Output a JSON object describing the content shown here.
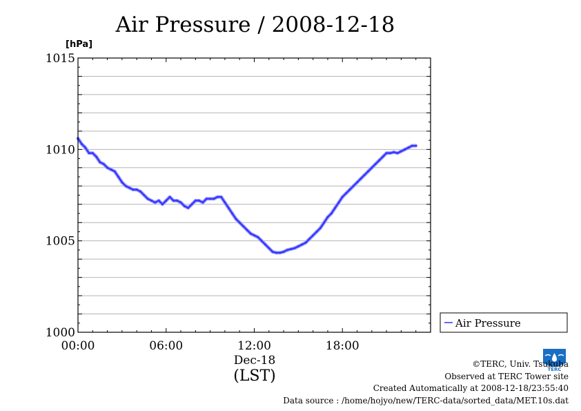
{
  "chart_data": {
    "type": "line",
    "title": "Air Pressure / 2008-12-18",
    "ylabel": "[hPa]",
    "xlabel": "Dec-18",
    "xlabel_sub": "(LST)",
    "ylim": [
      1000,
      1015
    ],
    "xlim_hours": [
      0,
      24
    ],
    "y_ticks": [
      "1000",
      "1005",
      "1010",
      "1015"
    ],
    "x_ticks": [
      {
        "hour": 0,
        "label": "00:00"
      },
      {
        "hour": 6,
        "label": "06:00"
      },
      {
        "hour": 12,
        "label": "12:00"
      },
      {
        "hour": 18,
        "label": "18:00"
      }
    ],
    "grid": true,
    "legend_position": "right",
    "series": [
      {
        "name": "Air Pressure",
        "color": "#3333ff",
        "points": [
          [
            0.0,
            1010.6
          ],
          [
            0.25,
            1010.3
          ],
          [
            0.5,
            1010.1
          ],
          [
            0.75,
            1009.8
          ],
          [
            1.0,
            1009.8
          ],
          [
            1.25,
            1009.6
          ],
          [
            1.5,
            1009.3
          ],
          [
            1.75,
            1009.2
          ],
          [
            2.0,
            1009.0
          ],
          [
            2.25,
            1008.9
          ],
          [
            2.5,
            1008.8
          ],
          [
            2.75,
            1008.5
          ],
          [
            3.0,
            1008.2
          ],
          [
            3.25,
            1008.0
          ],
          [
            3.5,
            1007.9
          ],
          [
            3.75,
            1007.8
          ],
          [
            4.0,
            1007.8
          ],
          [
            4.25,
            1007.7
          ],
          [
            4.5,
            1007.5
          ],
          [
            4.75,
            1007.3
          ],
          [
            5.0,
            1007.2
          ],
          [
            5.25,
            1007.1
          ],
          [
            5.5,
            1007.2
          ],
          [
            5.75,
            1007.0
          ],
          [
            6.0,
            1007.2
          ],
          [
            6.25,
            1007.4
          ],
          [
            6.5,
            1007.2
          ],
          [
            6.75,
            1007.2
          ],
          [
            7.0,
            1007.1
          ],
          [
            7.25,
            1006.9
          ],
          [
            7.5,
            1006.8
          ],
          [
            7.75,
            1007.0
          ],
          [
            8.0,
            1007.2
          ],
          [
            8.25,
            1007.2
          ],
          [
            8.5,
            1007.1
          ],
          [
            8.75,
            1007.3
          ],
          [
            9.0,
            1007.3
          ],
          [
            9.25,
            1007.3
          ],
          [
            9.5,
            1007.4
          ],
          [
            9.75,
            1007.4
          ],
          [
            10.0,
            1007.1
          ],
          [
            10.25,
            1006.8
          ],
          [
            10.5,
            1006.5
          ],
          [
            10.75,
            1006.2
          ],
          [
            11.0,
            1006.0
          ],
          [
            11.25,
            1005.8
          ],
          [
            11.5,
            1005.6
          ],
          [
            11.75,
            1005.4
          ],
          [
            12.0,
            1005.3
          ],
          [
            12.25,
            1005.2
          ],
          [
            12.5,
            1005.0
          ],
          [
            12.75,
            1004.8
          ],
          [
            13.0,
            1004.6
          ],
          [
            13.25,
            1004.4
          ],
          [
            13.5,
            1004.35
          ],
          [
            13.75,
            1004.35
          ],
          [
            14.0,
            1004.4
          ],
          [
            14.25,
            1004.5
          ],
          [
            14.5,
            1004.55
          ],
          [
            14.75,
            1004.6
          ],
          [
            15.0,
            1004.7
          ],
          [
            15.25,
            1004.8
          ],
          [
            15.5,
            1004.9
          ],
          [
            15.75,
            1005.1
          ],
          [
            16.0,
            1005.3
          ],
          [
            16.25,
            1005.5
          ],
          [
            16.5,
            1005.7
          ],
          [
            16.75,
            1006.0
          ],
          [
            17.0,
            1006.3
          ],
          [
            17.25,
            1006.5
          ],
          [
            17.5,
            1006.8
          ],
          [
            17.75,
            1007.1
          ],
          [
            18.0,
            1007.4
          ],
          [
            18.25,
            1007.6
          ],
          [
            18.5,
            1007.8
          ],
          [
            18.75,
            1008.0
          ],
          [
            19.0,
            1008.2
          ],
          [
            19.25,
            1008.4
          ],
          [
            19.5,
            1008.6
          ],
          [
            19.75,
            1008.8
          ],
          [
            20.0,
            1009.0
          ],
          [
            20.25,
            1009.2
          ],
          [
            20.5,
            1009.4
          ],
          [
            20.75,
            1009.6
          ],
          [
            21.0,
            1009.8
          ],
          [
            21.25,
            1009.8
          ],
          [
            21.5,
            1009.85
          ],
          [
            21.75,
            1009.8
          ],
          [
            22.0,
            1009.9
          ],
          [
            22.25,
            1010.0
          ],
          [
            22.5,
            1010.1
          ],
          [
            22.75,
            1010.2
          ],
          [
            23.0,
            1010.2
          ]
        ]
      }
    ]
  },
  "footer": {
    "copyright": "©TERC, Univ. Tsukuba",
    "observed": "Observed at TERC Tower site",
    "created": "Created Automatically at 2008-12-18/23:55:40",
    "source": "Data source : /home/hojyo/new/TERC-data/sorted_data/MET.10s.dat"
  },
  "logo": {
    "text": "TERC",
    "color": "#1a6fc4"
  }
}
